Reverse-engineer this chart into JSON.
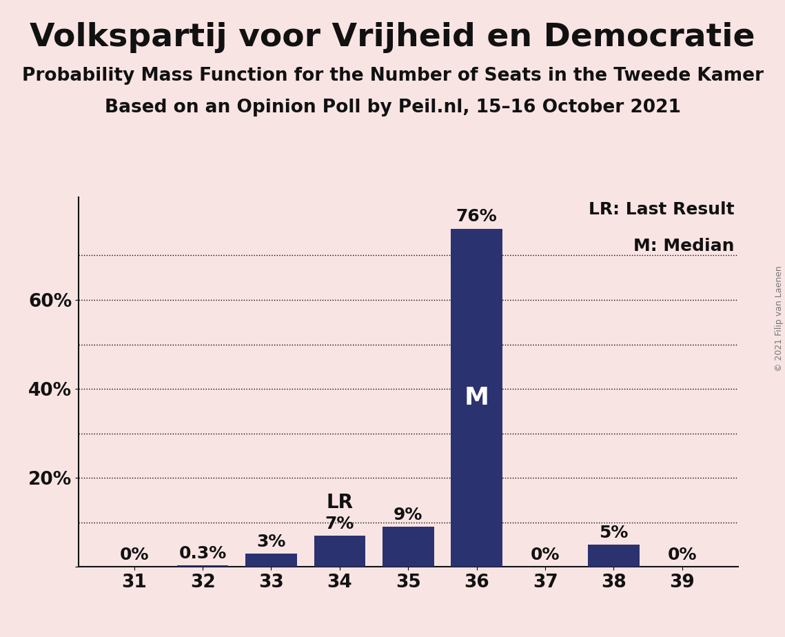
{
  "title": "Volkspartij voor Vrijheid en Democratie",
  "subtitle1": "Probability Mass Function for the Number of Seats in the Tweede Kamer",
  "subtitle2": "Based on an Opinion Poll by Peil.nl, 15–16 October 2021",
  "copyright": "© 2021 Filip van Laenen",
  "categories": [
    31,
    32,
    33,
    34,
    35,
    36,
    37,
    38,
    39
  ],
  "values": [
    0.0,
    0.3,
    3.0,
    7.0,
    9.0,
    76.0,
    0.0,
    5.0,
    0.0
  ],
  "labels": [
    "0%",
    "0.3%",
    "3%",
    "7%",
    "9%",
    "76%",
    "0%",
    "5%",
    "0%"
  ],
  "bar_color": "#2b3270",
  "background_color": "#f9e4e4",
  "ylabel_ticks": [
    "",
    "20%",
    "40%",
    "60%"
  ],
  "ytick_values": [
    0,
    20,
    40,
    60
  ],
  "grid_values": [
    10,
    20,
    30,
    40,
    50,
    60,
    70
  ],
  "ylim": [
    0,
    83
  ],
  "lr_seat": 34,
  "median_seat": 36,
  "legend_text1": "LR: Last Result",
  "legend_text2": "M: Median",
  "grid_color": "#000000",
  "title_fontsize": 34,
  "subtitle_fontsize": 19,
  "label_fontsize": 18,
  "tick_fontsize": 19,
  "legend_fontsize": 18,
  "copyright_fontsize": 9
}
